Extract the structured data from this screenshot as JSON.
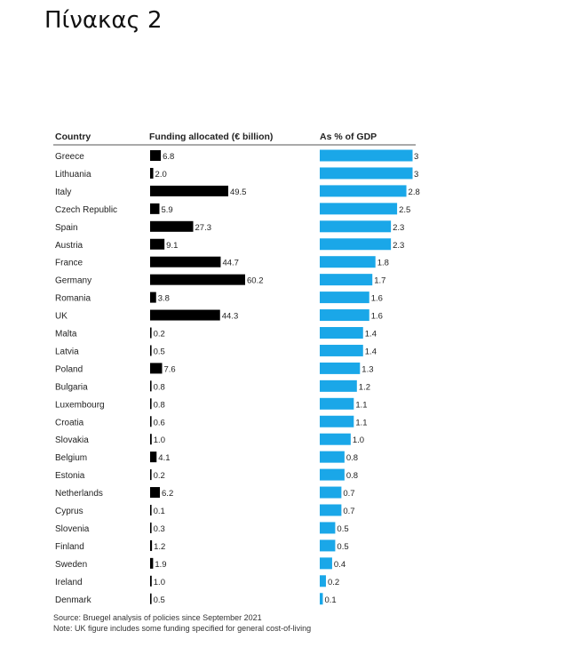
{
  "page_title": "Πίνακας 2",
  "chart_data": {
    "type": "table",
    "columns": [
      "Country",
      "Funding allocated (€ billion)",
      "As % of GDP"
    ],
    "rows": [
      {
        "country": "Greece",
        "funding": "6.8",
        "gdp_pct": "3"
      },
      {
        "country": "Lithuania",
        "funding": "2.0",
        "gdp_pct": "3"
      },
      {
        "country": "Italy",
        "funding": "49.5",
        "gdp_pct": "2.8"
      },
      {
        "country": "Czech Republic",
        "funding": "5.9",
        "gdp_pct": "2.5"
      },
      {
        "country": "Spain",
        "funding": "27.3",
        "gdp_pct": "2.3"
      },
      {
        "country": "Austria",
        "funding": "9.1",
        "gdp_pct": "2.3"
      },
      {
        "country": "France",
        "funding": "44.7",
        "gdp_pct": "1.8"
      },
      {
        "country": "Germany",
        "funding": "60.2",
        "gdp_pct": "1.7"
      },
      {
        "country": "Romania",
        "funding": "3.8",
        "gdp_pct": "1.6"
      },
      {
        "country": "UK",
        "funding": "44.3",
        "gdp_pct": "1.6"
      },
      {
        "country": "Malta",
        "funding": "0.2",
        "gdp_pct": "1.4"
      },
      {
        "country": "Latvia",
        "funding": "0.5",
        "gdp_pct": "1.4"
      },
      {
        "country": "Poland",
        "funding": "7.6",
        "gdp_pct": "1.3"
      },
      {
        "country": "Bulgaria",
        "funding": "0.8",
        "gdp_pct": "1.2"
      },
      {
        "country": "Luxembourg",
        "funding": "0.8",
        "gdp_pct": "1.1"
      },
      {
        "country": "Croatia",
        "funding": "0.6",
        "gdp_pct": "1.1"
      },
      {
        "country": "Slovakia",
        "funding": "1.0",
        "gdp_pct": "1.0"
      },
      {
        "country": "Belgium",
        "funding": "4.1",
        "gdp_pct": "0.8"
      },
      {
        "country": "Estonia",
        "funding": "0.2",
        "gdp_pct": "0.8"
      },
      {
        "country": "Netherlands",
        "funding": "6.2",
        "gdp_pct": "0.7"
      },
      {
        "country": "Cyprus",
        "funding": "0.1",
        "gdp_pct": "0.7"
      },
      {
        "country": "Slovenia",
        "funding": "0.3",
        "gdp_pct": "0.5"
      },
      {
        "country": "Finland",
        "funding": "1.2",
        "gdp_pct": "0.5"
      },
      {
        "country": "Sweden",
        "funding": "1.9",
        "gdp_pct": "0.4"
      },
      {
        "country": "Ireland",
        "funding": "1.0",
        "gdp_pct": "0.2"
      },
      {
        "country": "Denmark",
        "funding": "0.5",
        "gdp_pct": "0.1"
      }
    ],
    "funding_max": 60.2,
    "gdp_max": 3.1,
    "colors": {
      "funding_bar": "#000000",
      "gdp_bar": "#1aa7e8",
      "rule": "#555555"
    },
    "source": "Source: Bruegel analysis of policies since September 2021",
    "note": "Note: UK figure includes some funding specified for general cost-of-living"
  }
}
